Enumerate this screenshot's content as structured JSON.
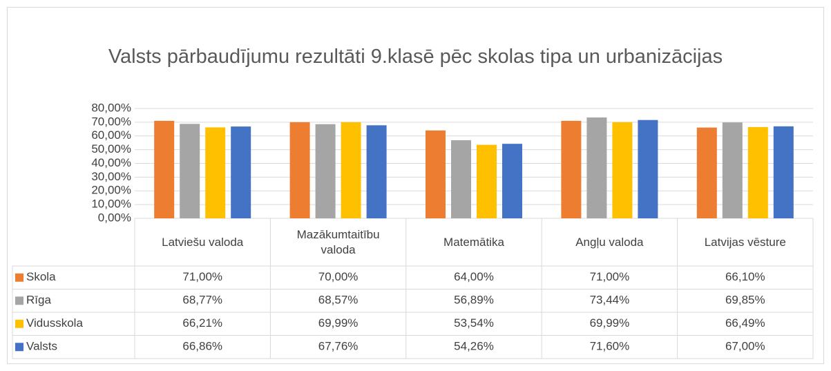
{
  "chart_data": {
    "type": "bar",
    "title": "Valsts pārbaudījumu rezultāti 9.klasē pēc skolas tipa un urbanizācijas",
    "categories": [
      "Latviešu valoda",
      "Mazākumtaitību valoda",
      "Matemātika",
      "Angļu valoda",
      "Latvijas vēsture"
    ],
    "series": [
      {
        "name": "Skola",
        "color": "#ed7d31",
        "values": [
          71,
          70,
          64,
          71,
          66.1
        ],
        "value_labels": [
          "71,00%",
          "70,00%",
          "64,00%",
          "71,00%",
          "66,10%"
        ]
      },
      {
        "name": "Rīga",
        "color": "#a5a5a5",
        "values": [
          68.77,
          68.57,
          56.89,
          73.44,
          69.85
        ],
        "value_labels": [
          "68,77%",
          "68,57%",
          "56,89%",
          "73,44%",
          "69,85%"
        ]
      },
      {
        "name": "Vidusskola",
        "color": "#ffc000",
        "values": [
          66.21,
          69.99,
          53.54,
          69.99,
          66.49
        ],
        "value_labels": [
          "66,21%",
          "69,99%",
          "53,54%",
          "69,99%",
          "66,49%"
        ]
      },
      {
        "name": "Valsts",
        "color": "#4472c4",
        "values": [
          66.86,
          67.76,
          54.26,
          71.6,
          67
        ],
        "value_labels": [
          "66,86%",
          "67,76%",
          "54,26%",
          "71,60%",
          "67,00%"
        ]
      }
    ],
    "ylim": [
      0,
      80
    ],
    "yticks": [
      {
        "value": 0,
        "label": "0,00%"
      },
      {
        "value": 10,
        "label": "10,00%"
      },
      {
        "value": 20,
        "label": "20,00%"
      },
      {
        "value": 30,
        "label": "30,00%"
      },
      {
        "value": 40,
        "label": "40,00%"
      },
      {
        "value": 50,
        "label": "50,00%"
      },
      {
        "value": 60,
        "label": "60,00%"
      },
      {
        "value": 70,
        "label": "70,00%"
      },
      {
        "value": 80,
        "label": "80,00%"
      }
    ],
    "grid": true
  }
}
